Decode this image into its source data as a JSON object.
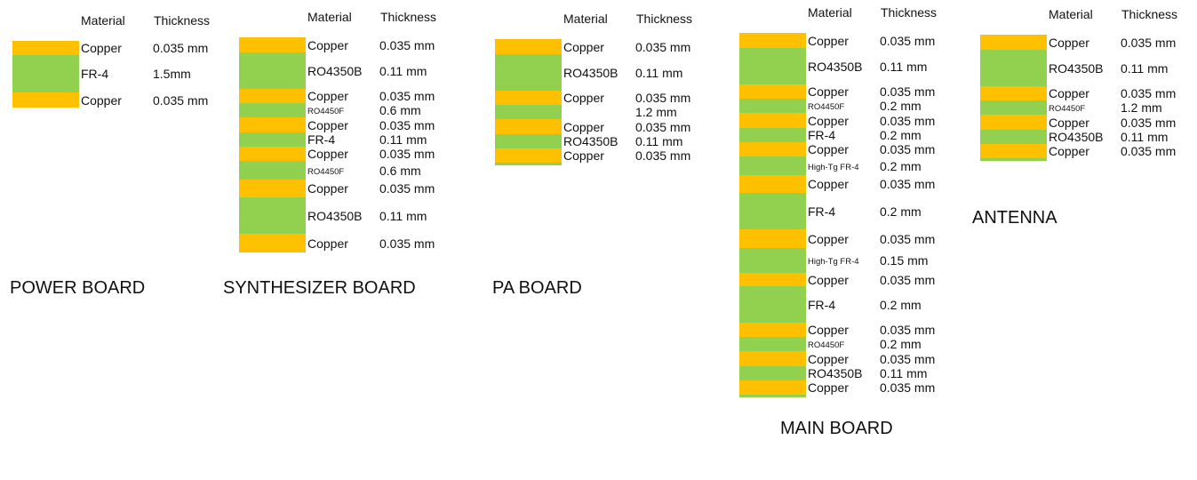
{
  "headers": {
    "material": "Material",
    "thickness": "Thickness"
  },
  "colors": {
    "copper": "#FFC000",
    "dielectric": "#92D050"
  },
  "boards": [
    {
      "title": "POWER BOARD",
      "layers": [
        {
          "type": "copper",
          "material": "Copper",
          "thickness": "0.035 mm"
        },
        {
          "type": "dielectric",
          "material": "FR-4",
          "thickness": "1.5mm"
        },
        {
          "type": "copper",
          "material": "Copper",
          "thickness": "0.035 mm"
        }
      ]
    },
    {
      "title": "SYNTHESIZER BOARD",
      "layers": [
        {
          "type": "copper",
          "material": "Copper",
          "thickness": "0.035 mm"
        },
        {
          "type": "dielectric",
          "material": "RO4350B",
          "thickness": "0.11 mm"
        },
        {
          "type": "copper",
          "material": "Copper",
          "thickness": "0.035 mm"
        },
        {
          "type": "dielectric",
          "material": "RO4450F",
          "thickness": "0.6 mm"
        },
        {
          "type": "copper",
          "material": "Copper",
          "thickness": "0.035 mm"
        },
        {
          "type": "dielectric",
          "material": "FR-4",
          "thickness": "0.11 mm"
        },
        {
          "type": "copper",
          "material": "Copper",
          "thickness": "0.035 mm"
        },
        {
          "type": "dielectric",
          "material": "RO4450F",
          "thickness": "0.6 mm"
        },
        {
          "type": "copper",
          "material": "Copper",
          "thickness": "0.035 mm"
        },
        {
          "type": "dielectric",
          "material": "RO4350B",
          "thickness": "0.11 mm"
        },
        {
          "type": "copper",
          "material": "Copper",
          "thickness": "0.035 mm"
        }
      ]
    },
    {
      "title": "PA BOARD",
      "layers": [
        {
          "type": "copper",
          "material": "Copper",
          "thickness": "0.035 mm"
        },
        {
          "type": "dielectric",
          "material": "RO4350B",
          "thickness": "0.11 mm"
        },
        {
          "type": "copper",
          "material": "Copper",
          "thickness": "0.035 mm"
        },
        {
          "type": "dielectric",
          "material": "",
          "thickness": "1.2 mm"
        },
        {
          "type": "copper",
          "material": "Copper",
          "thickness": "0.035 mm"
        },
        {
          "type": "dielectric",
          "material": "RO4350B",
          "thickness": "0.11 mm"
        },
        {
          "type": "copper",
          "material": "Copper",
          "thickness": "0.035 mm"
        },
        {
          "type": "dielectric",
          "material": "",
          "thickness": ""
        }
      ]
    },
    {
      "title": "MAIN BOARD",
      "layers": [
        {
          "type": "copper",
          "material": "Copper",
          "thickness": "0.035 mm"
        },
        {
          "type": "dielectric",
          "material": "RO4350B",
          "thickness": "0.11 mm"
        },
        {
          "type": "copper",
          "material": "Copper",
          "thickness": "0.035  mm"
        },
        {
          "type": "dielectric",
          "material": "RO4450F",
          "thickness": "0.2 mm"
        },
        {
          "type": "copper",
          "material": "Copper",
          "thickness": "0.035 mm"
        },
        {
          "type": "dielectric",
          "material": "FR-4",
          "thickness": "0.2 mm"
        },
        {
          "type": "copper",
          "material": "Copper",
          "thickness": "0.035 mm"
        },
        {
          "type": "dielectric",
          "material": "High-Tg FR-4",
          "thickness": "0.2 mm"
        },
        {
          "type": "copper",
          "material": "Copper",
          "thickness": "0.035 mm"
        },
        {
          "type": "dielectric",
          "material": "FR-4",
          "thickness": "0.2 mm"
        },
        {
          "type": "copper",
          "material": "Copper",
          "thickness": "0.035 mm"
        },
        {
          "type": "dielectric",
          "material": "High-Tg FR-4",
          "thickness": "0.15 mm"
        },
        {
          "type": "copper",
          "material": "Copper",
          "thickness": "0.035 mm"
        },
        {
          "type": "dielectric",
          "material": "FR-4",
          "thickness": "0.2 mm"
        },
        {
          "type": "copper",
          "material": "Copper",
          "thickness": "0.035 mm"
        },
        {
          "type": "dielectric",
          "material": "RO4450F",
          "thickness": "0.2 mm"
        },
        {
          "type": "copper",
          "material": "Copper",
          "thickness": "0.035 mm"
        },
        {
          "type": "dielectric",
          "material": "RO4350B",
          "thickness": "0.11 mm"
        },
        {
          "type": "copper",
          "material": "Copper",
          "thickness": "0.035 mm"
        },
        {
          "type": "dielectric",
          "material": "",
          "thickness": ""
        }
      ]
    },
    {
      "title": "ANTENNA",
      "layers": [
        {
          "type": "copper",
          "material": "Copper",
          "thickness": "0.035 mm"
        },
        {
          "type": "dielectric",
          "material": "RO4350B",
          "thickness": "0.11 mm"
        },
        {
          "type": "copper",
          "material": "Copper",
          "thickness": "0.035 mm"
        },
        {
          "type": "dielectric",
          "material": "RO4450F",
          "thickness": "1.2 mm"
        },
        {
          "type": "copper",
          "material": "Copper",
          "thickness": "0.035 mm"
        },
        {
          "type": "dielectric",
          "material": "RO4350B",
          "thickness": "0.11 mm"
        },
        {
          "type": "copper",
          "material": "Copper",
          "thickness": "0.035 mm"
        },
        {
          "type": "dielectric",
          "material": "",
          "thickness": ""
        }
      ]
    }
  ]
}
